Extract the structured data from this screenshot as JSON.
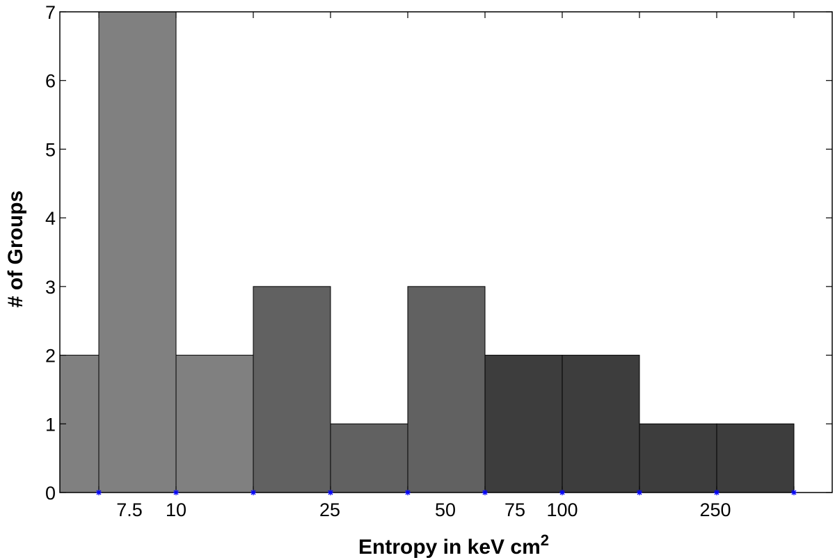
{
  "chart_data": {
    "type": "bar",
    "xlabel": "Entropy in keV cm",
    "xlabel_superscript": "2",
    "ylabel": "# of Groups",
    "ylim": [
      0,
      7
    ],
    "y_ticks": [
      0,
      1,
      2,
      3,
      4,
      5,
      6,
      7
    ],
    "x_tick_labels": [
      "7.5",
      "10",
      "25",
      "50",
      "75",
      "100",
      "250"
    ],
    "bars": [
      {
        "value": 2,
        "color": "#808080"
      },
      {
        "value": 7,
        "color": "#808080"
      },
      {
        "value": 2,
        "color": "#808080"
      },
      {
        "value": 3,
        "color": "#616161"
      },
      {
        "value": 1,
        "color": "#616161"
      },
      {
        "value": 3,
        "color": "#616161"
      },
      {
        "value": 2,
        "color": "#3d3d3d"
      },
      {
        "value": 2,
        "color": "#3d3d3d"
      },
      {
        "value": 1,
        "color": "#3d3d3d"
      },
      {
        "value": 1,
        "color": "#3d3d3d"
      }
    ],
    "bin_edge_marker_color": "#0000ff",
    "grid": false
  }
}
